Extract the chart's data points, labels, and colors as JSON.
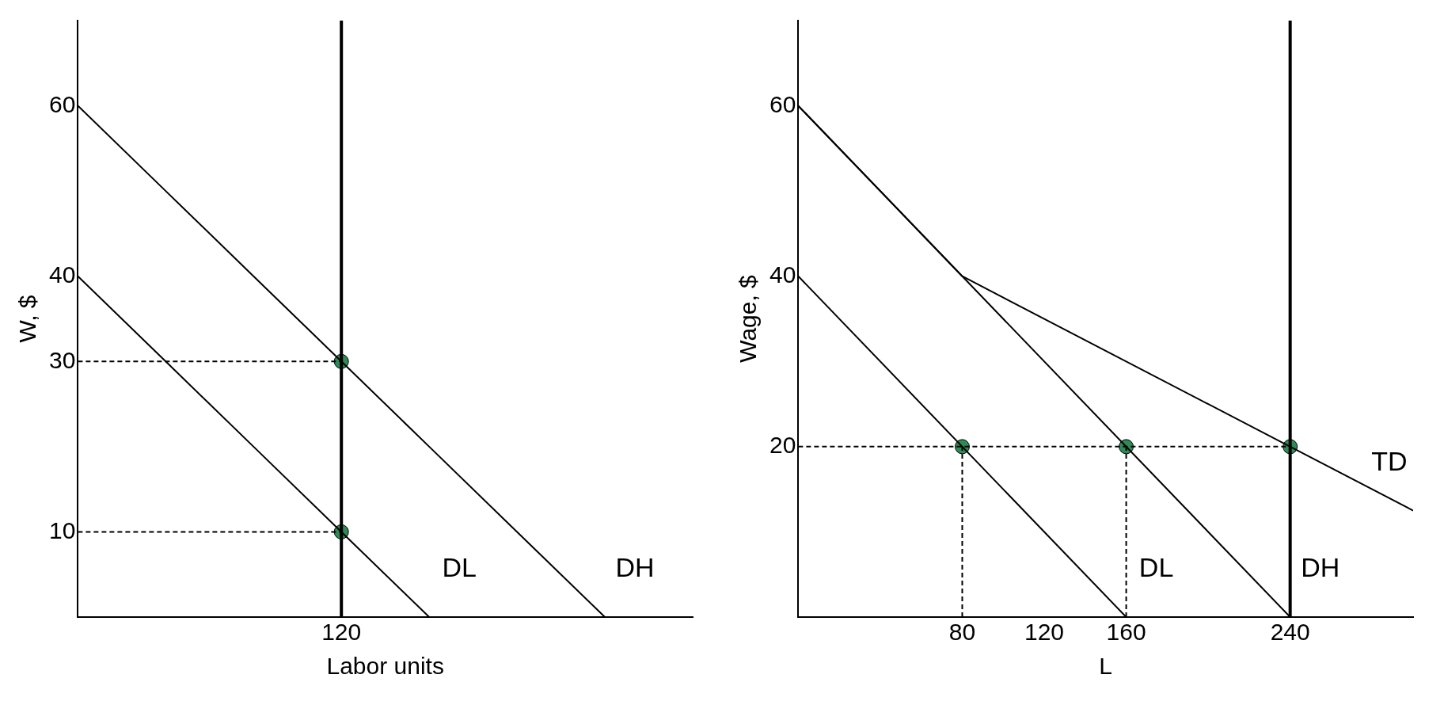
{
  "chart_data": [
    {
      "type": "line",
      "xlabel": "Labor units",
      "ylabel": "W, $",
      "categories": [
        null,
        null,
        null,
        "120",
        null,
        null,
        null,
        null
      ],
      "ylim": [
        0,
        70
      ],
      "yticks": [
        10,
        30,
        40,
        60
      ],
      "grid": false,
      "legend": false,
      "marker": "none",
      "series": [
        {
          "name": "DH",
          "color": "#000000",
          "values": [
            60,
            50,
            40,
            30,
            20,
            10,
            0,
            null
          ]
        },
        {
          "name": "DL",
          "color": "#000000",
          "values": [
            40,
            30,
            20,
            10,
            0,
            null,
            null,
            null
          ]
        },
        {
          "color": "#000000",
          "line_style": "dashed",
          "values": [
            30,
            30,
            30,
            30,
            null,
            null,
            null,
            null
          ]
        },
        {
          "color": "#000000",
          "line_style": "dashed",
          "values": [
            10,
            10,
            10,
            10,
            null,
            null,
            null,
            null
          ]
        },
        {
          "type": "scatter",
          "marker": "circle",
          "color": "#2e8b57",
          "x": [
            "120",
            "120"
          ],
          "values": [
            30,
            10
          ]
        }
      ],
      "ref_lines": [
        {
          "axis": "x",
          "value": "120",
          "color": "#000000"
        }
      ]
    },
    {
      "type": "line",
      "xlabel": "L",
      "ylabel": "Wage, $",
      "xlim": [
        0,
        300
      ],
      "ylim": [
        0,
        70
      ],
      "xticks": [
        80,
        120,
        160,
        240
      ],
      "yticks": [
        20,
        40,
        60
      ],
      "grid": false,
      "legend": false,
      "marker": "none",
      "series": [
        {
          "name": "DH",
          "color": "#000000",
          "x": [
            0,
            240
          ],
          "values": [
            60,
            0
          ]
        },
        {
          "name": "DL",
          "color": "#000000",
          "x": [
            0,
            160
          ],
          "values": [
            40,
            0
          ]
        },
        {
          "name": "TD",
          "color": "#000000",
          "x": [
            0,
            80,
            240,
            300
          ],
          "values": [
            60,
            40,
            20,
            12.5
          ]
        },
        {
          "color": "#000000",
          "line_style": "dashed",
          "x": [
            0,
            240
          ],
          "values": [
            20,
            20
          ]
        },
        {
          "color": "#000000",
          "line_style": "dashed",
          "x": [
            80,
            80
          ],
          "values": [
            0,
            20
          ]
        },
        {
          "color": "#000000",
          "line_style": "dashed",
          "x": [
            160,
            160
          ],
          "values": [
            0,
            20
          ]
        },
        {
          "type": "scatter",
          "marker": "circle",
          "color": "#2e8b57",
          "x": [
            80,
            160,
            240
          ],
          "values": [
            20,
            20,
            20
          ]
        }
      ],
      "ref_lines": [
        {
          "axis": "x",
          "value": 240,
          "color": "#000000"
        }
      ]
    }
  ]
}
